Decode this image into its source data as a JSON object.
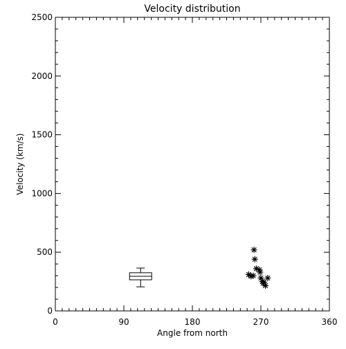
{
  "chart_data": {
    "type": "scatter",
    "title": "Velocity distribution",
    "xlabel": "Angle from north",
    "ylabel": "Velocity (km/s)",
    "xlim": [
      0,
      360
    ],
    "ylim": [
      0,
      2500
    ],
    "xticks": [
      0,
      90,
      180,
      270,
      360
    ],
    "yticks": [
      0,
      500,
      1000,
      1500,
      2000,
      2500
    ],
    "grid": false,
    "boxplot": {
      "x": 112,
      "whisker_low": 205,
      "q1": 265,
      "median": 295,
      "q3": 325,
      "whisker_high": 365
    },
    "points": [
      {
        "x": 254,
        "y": 310
      },
      {
        "x": 257,
        "y": 295
      },
      {
        "x": 260,
        "y": 300
      },
      {
        "x": 261,
        "y": 520
      },
      {
        "x": 262,
        "y": 440
      },
      {
        "x": 264,
        "y": 360
      },
      {
        "x": 268,
        "y": 350
      },
      {
        "x": 269,
        "y": 330
      },
      {
        "x": 270,
        "y": 280
      },
      {
        "x": 272,
        "y": 250
      },
      {
        "x": 273,
        "y": 235
      },
      {
        "x": 274,
        "y": 245
      },
      {
        "x": 276,
        "y": 215
      },
      {
        "x": 279,
        "y": 280
      }
    ],
    "marker": "asterisk",
    "colors": {
      "axis": "#000000",
      "marks": "#000000",
      "background": "#ffffff"
    }
  }
}
